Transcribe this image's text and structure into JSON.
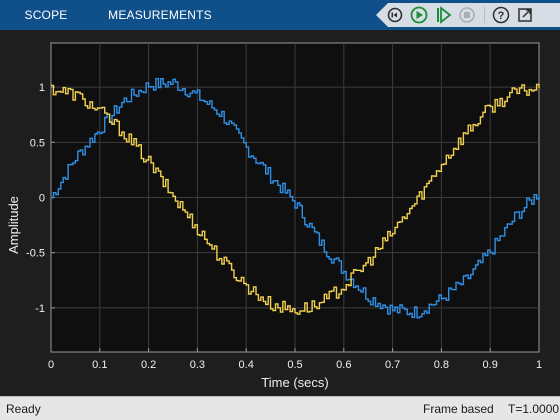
{
  "toolstrip": {
    "tabs": [
      {
        "label": "SCOPE"
      },
      {
        "label": "MEASUREMENTS"
      }
    ],
    "quick_access": [
      {
        "icon": "step-back-icon"
      },
      {
        "icon": "run-icon"
      },
      {
        "icon": "step-forward-icon"
      },
      {
        "icon": "stop-icon"
      },
      {
        "icon": "help-icon"
      },
      {
        "icon": "undock-icon"
      }
    ]
  },
  "chart_data": {
    "type": "line",
    "xlabel": "Time (secs)",
    "ylabel": "Amplitude",
    "xlim": [
      0,
      1
    ],
    "ylim": [
      -1.4,
      1.4
    ],
    "xticks": [
      "0",
      "0.1",
      "0.2",
      "0.3",
      "0.4",
      "0.5",
      "0.6",
      "0.7",
      "0.8",
      "0.9",
      "1"
    ],
    "yticks": [
      "-1",
      "-0.5",
      "0",
      "0.5",
      "1"
    ],
    "grid": true,
    "x": [
      0,
      0.05,
      0.1,
      0.15,
      0.2,
      0.25,
      0.3,
      0.35,
      0.4,
      0.45,
      0.5,
      0.55,
      0.6,
      0.65,
      0.7,
      0.75,
      0.8,
      0.85,
      0.9,
      0.95,
      1
    ],
    "series": [
      {
        "color": "#2f8fe6",
        "values": [
          0.0,
          0.36,
          0.62,
          0.88,
          1.02,
          1.04,
          0.92,
          0.75,
          0.45,
          0.19,
          -0.05,
          -0.4,
          -0.67,
          -0.9,
          -1.02,
          -1.04,
          -0.92,
          -0.75,
          -0.49,
          -0.18,
          0.05
        ]
      },
      {
        "color": "#f0d04e",
        "values": [
          0.99,
          0.93,
          0.78,
          0.58,
          0.32,
          0.01,
          -0.28,
          -0.57,
          -0.8,
          -0.97,
          -1.02,
          -0.97,
          -0.8,
          -0.58,
          -0.31,
          -0.02,
          0.31,
          0.59,
          0.82,
          0.95,
          1.0
        ]
      }
    ]
  },
  "status": {
    "left": "Ready",
    "mode": "Frame based",
    "time": "T=1.0000"
  }
}
